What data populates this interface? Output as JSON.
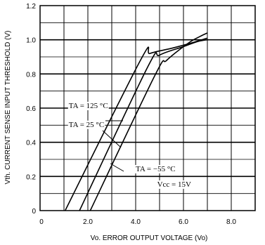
{
  "chart_data": {
    "type": "line",
    "xlabel": "Vo. ERROR OUTPUT VOLTAGE (Vo)",
    "ylabel": "Vth. CURRENT SENSE INPUT THRESHOLD (V)",
    "xlim": [
      0,
      9
    ],
    "ylim": [
      0,
      1.2
    ],
    "x_ticks": [
      0,
      2,
      4,
      6,
      8
    ],
    "x_tick_labels": [
      "0",
      "2.0",
      "4.0",
      "6.0",
      "8.0"
    ],
    "y_ticks": [
      0,
      0.2,
      0.4,
      0.6,
      0.8,
      1.0,
      1.2
    ],
    "y_tick_labels": [
      "0",
      "0.2",
      "0.4",
      "0.6",
      "0.8",
      "1.0",
      "1.2"
    ],
    "grid": true,
    "series": [
      {
        "name": "TA = 125 °C",
        "points": [
          [
            1.05,
            0.0
          ],
          [
            4.2,
            0.88
          ],
          [
            4.6,
            0.92
          ],
          [
            5.5,
            0.95
          ],
          [
            6.3,
            0.98
          ],
          [
            7.0,
            1.01
          ]
        ]
      },
      {
        "name": "TA = 25 °C",
        "points": [
          [
            1.65,
            0.0
          ],
          [
            4.5,
            0.84
          ],
          [
            5.0,
            0.91
          ],
          [
            6.0,
            0.96
          ],
          [
            6.6,
            0.99
          ],
          [
            7.0,
            1.0
          ]
        ]
      },
      {
        "name": "TA = −55 °C",
        "points": [
          [
            2.1,
            0.0
          ],
          [
            4.8,
            0.79
          ],
          [
            5.3,
            0.88
          ],
          [
            6.2,
            0.98
          ],
          [
            6.7,
            1.02
          ],
          [
            7.0,
            1.04
          ]
        ]
      }
    ],
    "annotations": [
      {
        "text": "TA = 125 °C",
        "x": 1.2,
        "y": 0.6
      },
      {
        "text": "TA = 25 °C",
        "x": 1.2,
        "y": 0.49
      },
      {
        "text": "TA = −55 °C",
        "x": 4.0,
        "y": 0.23
      },
      {
        "text": "Vcc = 15V",
        "x": 4.9,
        "y": 0.14
      }
    ]
  }
}
